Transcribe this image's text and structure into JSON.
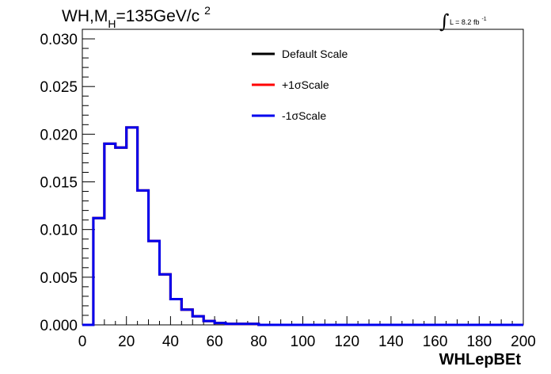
{
  "chart_data": {
    "type": "line",
    "title_parts": {
      "pre": "WH,M",
      "sub": "H",
      "post": "=135GeV/c",
      "sup": "2"
    },
    "lumi": {
      "integral_sign": "∫",
      "text": "L = 8.2 fb",
      "sup": "-1"
    },
    "xlabel": "WHLepBEt",
    "ylabel": "",
    "xlim": [
      0,
      200
    ],
    "ylim": [
      0,
      0.031
    ],
    "x_ticks": [
      "0",
      "20",
      "40",
      "60",
      "80",
      "100",
      "120",
      "140",
      "160",
      "180",
      "200"
    ],
    "y_ticks": [
      "0.000",
      "0.005",
      "0.010",
      "0.015",
      "0.020",
      "0.025",
      "0.030"
    ],
    "bin_width": 5,
    "bin_low_edges": [
      0,
      5,
      10,
      15,
      20,
      25,
      30,
      35,
      40,
      45,
      50,
      55,
      60,
      65,
      70,
      75,
      80,
      85,
      90,
      95,
      100,
      105,
      110,
      115,
      120,
      125,
      130,
      135,
      140,
      145,
      150,
      155,
      160,
      165,
      170,
      175,
      180,
      185,
      190,
      195
    ],
    "legend_position": "top-center",
    "series": [
      {
        "name": "Default Scale",
        "color": "#000000",
        "values": [
          0,
          0.0112,
          0.019,
          0.0186,
          0.0207,
          0.0141,
          0.0088,
          0.0053,
          0.0027,
          0.0016,
          0.0009,
          0.0004,
          0.0002,
          0.0001,
          0.0001,
          0.0001,
          0,
          0,
          0,
          0,
          0,
          0,
          0,
          0,
          0,
          0,
          0,
          0,
          0,
          0,
          0,
          0,
          0,
          0,
          0,
          0,
          0,
          0,
          0,
          0
        ]
      },
      {
        "name": "+1σScale",
        "color": "#ff0000",
        "values": [
          0,
          0.0112,
          0.019,
          0.0186,
          0.0207,
          0.0141,
          0.0088,
          0.0053,
          0.0027,
          0.0016,
          0.0009,
          0.0004,
          0.0002,
          0.0001,
          0.0001,
          0.0001,
          0,
          0,
          0,
          0,
          0,
          0,
          0,
          0,
          0,
          0,
          0,
          0,
          0,
          0,
          0,
          0,
          0,
          0,
          0,
          0,
          0,
          0,
          0,
          0
        ]
      },
      {
        "name": "-1σScale",
        "color": "#0000ee",
        "values": [
          0,
          0.0112,
          0.019,
          0.0186,
          0.0207,
          0.0141,
          0.0088,
          0.0053,
          0.0027,
          0.0016,
          0.0009,
          0.0004,
          0.0002,
          0.0001,
          0.0001,
          0.0001,
          0,
          0,
          0,
          0,
          0,
          0,
          0,
          0,
          0,
          0,
          0,
          0,
          0,
          0,
          0,
          0,
          0,
          0,
          0,
          0,
          0,
          0,
          0,
          0
        ]
      }
    ],
    "grid": false
  }
}
